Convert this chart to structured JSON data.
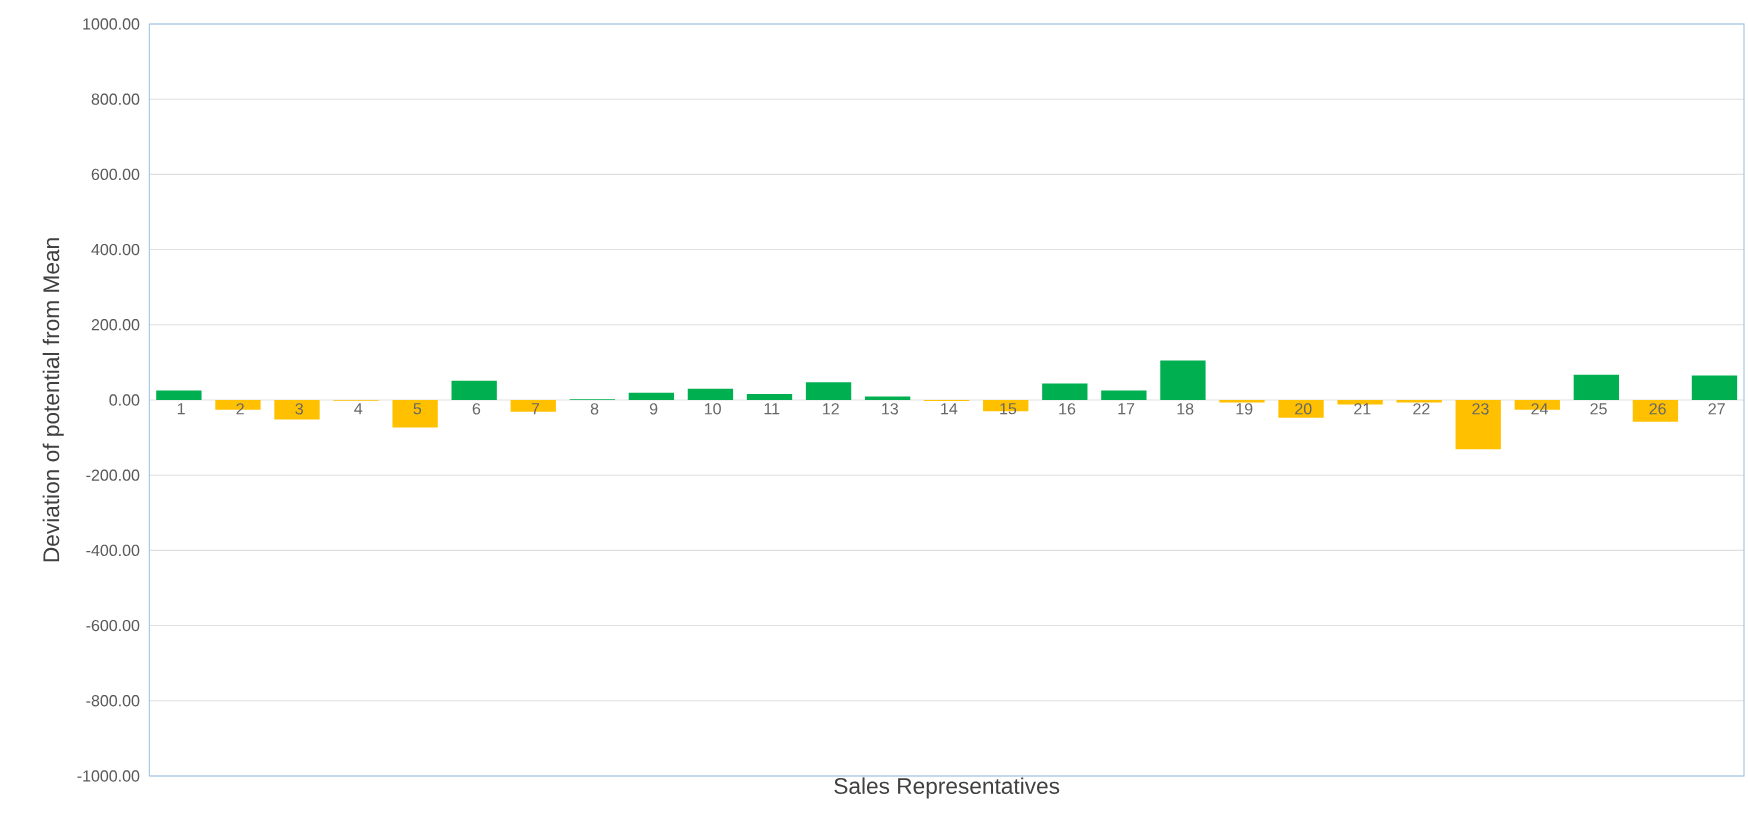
{
  "chart_data": {
    "type": "bar",
    "xlabel": "Sales Representatives",
    "ylabel": "Deviation of potential from Mean",
    "categories": [
      "1",
      "2",
      "3",
      "4",
      "5",
      "6",
      "7",
      "8",
      "9",
      "10",
      "11",
      "12",
      "13",
      "14",
      "15",
      "16",
      "17",
      "18",
      "19",
      "20",
      "21",
      "22",
      "23",
      "24",
      "25",
      "26",
      "27"
    ],
    "values": [
      25,
      -26,
      -52,
      -2,
      -73,
      51,
      -31,
      2,
      19,
      30,
      16,
      47,
      9,
      -3,
      -30,
      44,
      25,
      105,
      -7,
      -47,
      -12,
      -7,
      -131,
      -26,
      67,
      -58,
      65
    ],
    "colors": [
      "#00b050",
      "#ffc000",
      "#ffc000",
      "#ffc000",
      "#ffc000",
      "#00b050",
      "#ffc000",
      "#00b050",
      "#00b050",
      "#00b050",
      "#00b050",
      "#00b050",
      "#00b050",
      "#ffc000",
      "#ffc000",
      "#00b050",
      "#00b050",
      "#00b050",
      "#ffc000",
      "#ffc000",
      "#ffc000",
      "#ffc000",
      "#ffc000",
      "#ffc000",
      "#00b050",
      "#ffc000",
      "#00b050"
    ],
    "ylim": [
      -1000,
      1000
    ],
    "yticks": [
      {
        "value": -1000,
        "label": "-1000.00"
      },
      {
        "value": -800,
        "label": "-800.00"
      },
      {
        "value": -600,
        "label": "-600.00"
      },
      {
        "value": -400,
        "label": "-400.00"
      },
      {
        "value": -200,
        "label": "-200.00"
      },
      {
        "value": 0,
        "label": "0.00"
      },
      {
        "value": 200,
        "label": "200.00"
      },
      {
        "value": 400,
        "label": "400.00"
      },
      {
        "value": 600,
        "label": "600.00"
      },
      {
        "value": 800,
        "label": "800.00"
      },
      {
        "value": 1000,
        "label": "1000.00"
      }
    ],
    "grid": "y"
  }
}
